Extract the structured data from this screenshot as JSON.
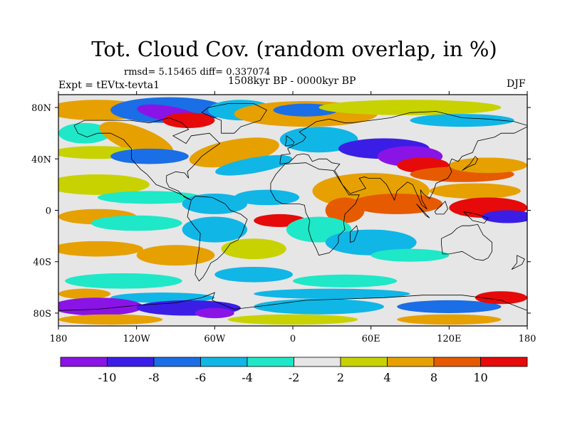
{
  "title": "Tot. Cloud Cov. (random overlap, in %)",
  "stats_text": "rmsd= 5.15465 diff= 0.337074",
  "period_text": "1508kyr BP - 0000kyr BP",
  "experiment_text": "Expt = tEVtx-tevta1",
  "season_text": "DJF",
  "x_ticks": [
    "180",
    "120W",
    "60W",
    "0",
    "60E",
    "120E",
    "180"
  ],
  "y_ticks": [
    "80N",
    "40N",
    "0",
    "40S",
    "80S"
  ],
  "x_tick_values": [
    -180,
    -120,
    -60,
    0,
    60,
    120,
    180
  ],
  "y_tick_values": [
    80,
    40,
    0,
    -40,
    -80
  ],
  "lon_range": [
    -180,
    180
  ],
  "lat_range": [
    -90,
    90
  ],
  "colorbar": {
    "labels": [
      "-10",
      "-8",
      "-6",
      "-4",
      "-2",
      "2",
      "4",
      "8",
      "10"
    ],
    "levels": [
      -10,
      -8,
      -6,
      -4,
      -2,
      2,
      4,
      8,
      10
    ],
    "colors": [
      "#8a14e6",
      "#3a1ee6",
      "#1a6ee6",
      "#10b6e6",
      "#1ee8c8",
      "#e6e6e6",
      "#c8d200",
      "#e6a000",
      "#e65a00",
      "#e60a0a"
    ]
  },
  "chart_data": {
    "type": "heatmap",
    "title": "Tot. Cloud Cov. (random overlap, in %)",
    "xlabel": "",
    "ylabel": "",
    "xlim": [
      -180,
      180
    ],
    "ylim": [
      -90,
      90
    ],
    "legend": "bottom",
    "contour_levels": [
      -10,
      -8,
      -6,
      -4,
      -2,
      2,
      4,
      8,
      10
    ]
  }
}
